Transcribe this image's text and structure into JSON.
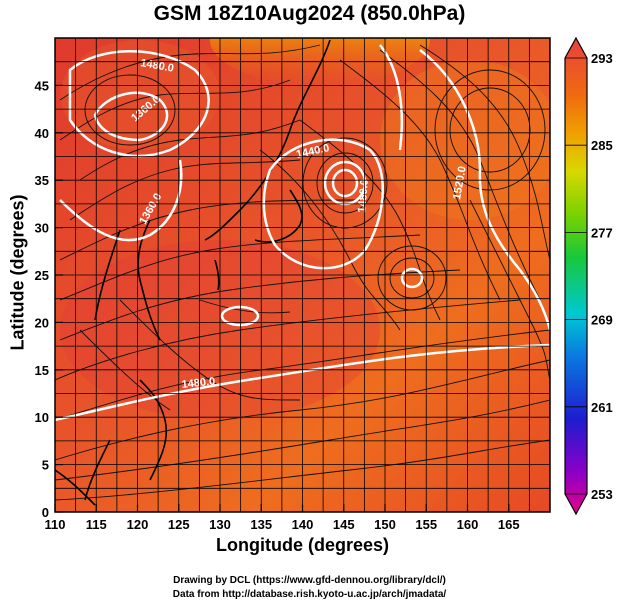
{
  "title": "GSM 18Z10Aug2024 (850.0hPa)",
  "x_axis": {
    "label": "Longitude (degrees)",
    "ticks": [
      "110",
      "115",
      "120",
      "125",
      "130",
      "135",
      "140",
      "145",
      "150",
      "155",
      "160",
      "165"
    ],
    "range": [
      110,
      170
    ]
  },
  "y_axis": {
    "label": "Latitude  (degrees)",
    "ticks": [
      "0",
      "5",
      "10",
      "15",
      "20",
      "25",
      "30",
      "35",
      "40",
      "45"
    ],
    "range": [
      0,
      50
    ]
  },
  "colorbar": {
    "ticks": [
      "293",
      "285",
      "277",
      "269",
      "261",
      "253"
    ],
    "range": [
      253,
      293
    ],
    "colors": [
      "#e5008a",
      "#8a00c8",
      "#1d1dcf",
      "#0a78e0",
      "#00c8d2",
      "#18c83a",
      "#7ad200",
      "#d8d800",
      "#f0a000",
      "#f06a10",
      "#e83a28",
      "#e84040"
    ]
  },
  "contours": {
    "labels": [
      "1480.0",
      "1360.0",
      "1440.0",
      "1480.0",
      "1520.0",
      "1360.0",
      "1480.0"
    ]
  },
  "credits": {
    "line1": "Drawing by DCL (https://www.gfd-dennou.org/library/dcl/)",
    "line2": "Data from http://database.rish.kyoto-u.ac.jp/arch/jmadata/"
  }
}
